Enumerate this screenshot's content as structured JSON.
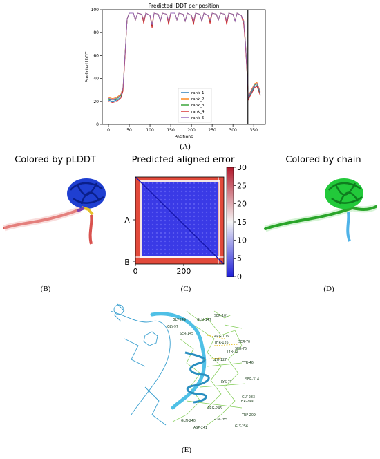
{
  "figure": {
    "panel_a": {
      "caption": "(A)",
      "chart_data": {
        "type": "line",
        "title": "Predicted lDDT per position",
        "xlabel": "Positions",
        "ylabel": "Predicted lDDT",
        "xlim": [
          -15,
          378
        ],
        "ylim": [
          0,
          100
        ],
        "xticks": [
          0,
          50,
          100,
          150,
          200,
          250,
          300,
          350
        ],
        "yticks": [
          0,
          20,
          40,
          60,
          80,
          100
        ],
        "vline_x": 336,
        "grid": false,
        "legend_placement": "lower-center",
        "series": [
          {
            "name": "rank_1",
            "color": "#1f77b4",
            "offset": 0
          },
          {
            "name": "rank_2",
            "color": "#ff7f0e",
            "offset": 2.5
          },
          {
            "name": "rank_3",
            "color": "#2ca02c",
            "offset": 1.2
          },
          {
            "name": "rank_4",
            "color": "#d62728",
            "offset": -1.0
          },
          {
            "name": "rank_5",
            "color": "#9467bd",
            "offset": 1.8
          }
        ],
        "base_profile": [
          [
            0,
            21
          ],
          [
            10,
            20
          ],
          [
            20,
            21
          ],
          [
            30,
            24
          ],
          [
            35,
            30
          ],
          [
            40,
            60
          ],
          [
            45,
            92
          ],
          [
            50,
            97
          ],
          [
            60,
            97
          ],
          [
            65,
            91
          ],
          [
            70,
            97
          ],
          [
            80,
            96
          ],
          [
            85,
            89
          ],
          [
            90,
            97
          ],
          [
            100,
            95
          ],
          [
            105,
            85
          ],
          [
            110,
            97
          ],
          [
            120,
            96
          ],
          [
            125,
            90
          ],
          [
            130,
            97
          ],
          [
            140,
            96
          ],
          [
            145,
            88
          ],
          [
            150,
            97
          ],
          [
            160,
            97
          ],
          [
            165,
            91
          ],
          [
            170,
            97
          ],
          [
            180,
            96
          ],
          [
            185,
            90
          ],
          [
            190,
            97
          ],
          [
            200,
            95
          ],
          [
            205,
            88
          ],
          [
            210,
            97
          ],
          [
            220,
            96
          ],
          [
            225,
            90
          ],
          [
            230,
            97
          ],
          [
            240,
            95
          ],
          [
            245,
            89
          ],
          [
            250,
            97
          ],
          [
            260,
            96
          ],
          [
            265,
            91
          ],
          [
            270,
            97
          ],
          [
            280,
            96
          ],
          [
            285,
            88
          ],
          [
            290,
            97
          ],
          [
            300,
            96
          ],
          [
            305,
            90
          ],
          [
            310,
            97
          ],
          [
            320,
            95
          ],
          [
            326,
            88
          ],
          [
            330,
            70
          ],
          [
            334,
            45
          ],
          [
            337,
            22
          ],
          [
            342,
            26
          ],
          [
            348,
            30
          ],
          [
            352,
            33
          ],
          [
            358,
            34
          ],
          [
            362,
            30
          ],
          [
            366,
            26
          ]
        ]
      }
    },
    "panel_b": {
      "title": "Colored by pLDDT",
      "caption": "(B)"
    },
    "panel_c": {
      "title": "Predicted aligned error",
      "caption": "(C)",
      "chart_data": {
        "type": "heatmap",
        "title": "Predicted aligned error",
        "colorbar_range": [
          0,
          30
        ],
        "colorbar_ticks": [
          0,
          5,
          10,
          15,
          20,
          25,
          30
        ],
        "xticks": [
          0,
          200
        ],
        "xlim": [
          0,
          366
        ],
        "chain_labels": [
          "A",
          "B"
        ],
        "colors": {
          "low": "#2020d8",
          "mid": "#f5f5f5",
          "high": "#b2182b"
        }
      }
    },
    "panel_d": {
      "title": "Colored by chain",
      "caption": "(D)"
    },
    "panel_e": {
      "caption": "(E)",
      "residue_labels": [
        "SER-101",
        "GLY-249",
        "GLN-147",
        "GLY-97",
        "SER-145",
        "ARG-106",
        "THR-126",
        "SER-75",
        "SER-70",
        "TYR-72",
        "LEU-127",
        "TYR-46",
        "SER-314",
        "LYS-77",
        "GLY-283",
        "THR-299",
        "ARG-245",
        "TRP-209",
        "GLN-285",
        "GLN-240",
        "ASP-241",
        "GLY-256"
      ]
    }
  }
}
